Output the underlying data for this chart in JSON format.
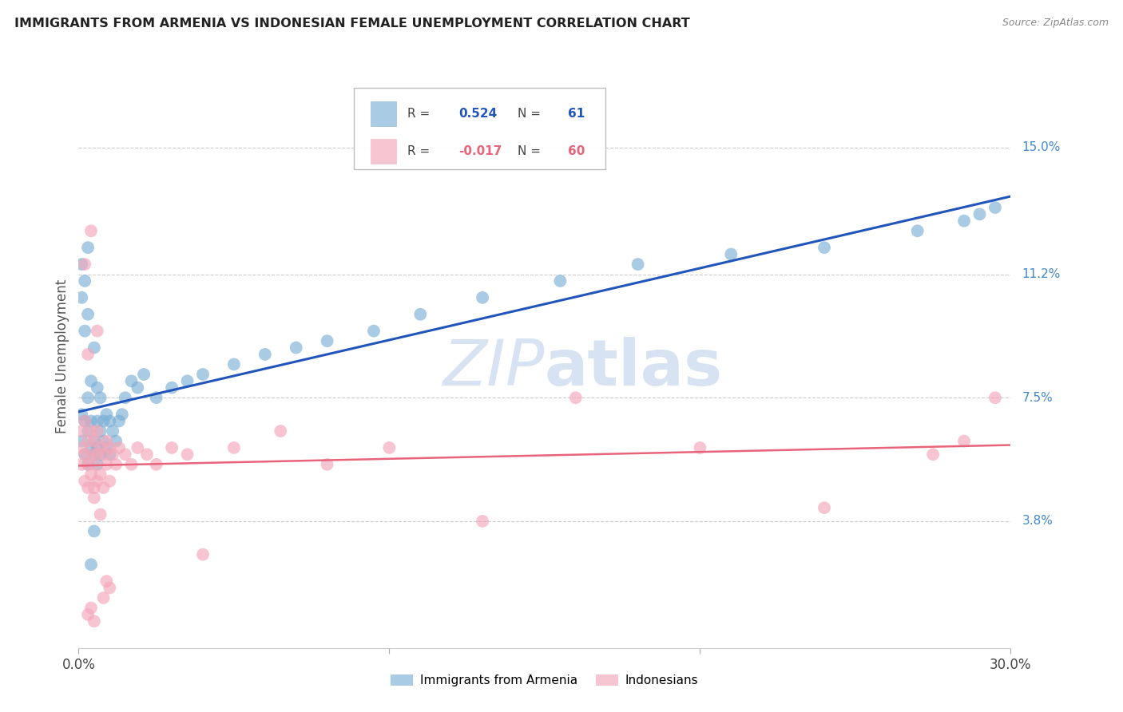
{
  "title": "IMMIGRANTS FROM ARMENIA VS INDONESIAN FEMALE UNEMPLOYMENT CORRELATION CHART",
  "source": "Source: ZipAtlas.com",
  "ylabel": "Female Unemployment",
  "ytick_labels": [
    "15.0%",
    "11.2%",
    "7.5%",
    "3.8%"
  ],
  "ytick_values": [
    0.15,
    0.112,
    0.075,
    0.038
  ],
  "xlim": [
    0.0,
    0.3
  ],
  "ylim": [
    0.0,
    0.175
  ],
  "blue_color": "#7BAFD4",
  "pink_color": "#F4A7B9",
  "line_blue": "#2255BB",
  "line_pink": "#E8647A",
  "watermark_color": "#D0DFF0",
  "background": "#FFFFFF",
  "armenia_x": [
    0.001,
    0.001,
    0.002,
    0.002,
    0.002,
    0.003,
    0.003,
    0.003,
    0.003,
    0.004,
    0.004,
    0.004,
    0.005,
    0.005,
    0.005,
    0.006,
    0.006,
    0.006,
    0.006,
    0.007,
    0.007,
    0.007,
    0.008,
    0.008,
    0.009,
    0.009,
    0.01,
    0.01,
    0.011,
    0.012,
    0.013,
    0.014,
    0.015,
    0.017,
    0.019,
    0.021,
    0.025,
    0.03,
    0.035,
    0.04,
    0.05,
    0.06,
    0.07,
    0.08,
    0.095,
    0.11,
    0.13,
    0.155,
    0.18,
    0.21,
    0.24,
    0.27,
    0.285,
    0.29,
    0.295,
    0.001,
    0.001,
    0.002,
    0.003,
    0.004,
    0.005
  ],
  "armenia_y": [
    0.062,
    0.07,
    0.058,
    0.068,
    0.095,
    0.055,
    0.065,
    0.075,
    0.1,
    0.06,
    0.068,
    0.08,
    0.058,
    0.062,
    0.09,
    0.055,
    0.06,
    0.068,
    0.078,
    0.058,
    0.065,
    0.075,
    0.062,
    0.068,
    0.06,
    0.07,
    0.058,
    0.068,
    0.065,
    0.062,
    0.068,
    0.07,
    0.075,
    0.08,
    0.078,
    0.082,
    0.075,
    0.078,
    0.08,
    0.082,
    0.085,
    0.088,
    0.09,
    0.092,
    0.095,
    0.1,
    0.105,
    0.11,
    0.115,
    0.118,
    0.12,
    0.125,
    0.128,
    0.13,
    0.132,
    0.105,
    0.115,
    0.11,
    0.12,
    0.025,
    0.035
  ],
  "indonesia_x": [
    0.001,
    0.001,
    0.001,
    0.002,
    0.002,
    0.002,
    0.003,
    0.003,
    0.003,
    0.004,
    0.004,
    0.004,
    0.005,
    0.005,
    0.005,
    0.006,
    0.006,
    0.006,
    0.007,
    0.007,
    0.008,
    0.008,
    0.009,
    0.009,
    0.01,
    0.01,
    0.011,
    0.012,
    0.013,
    0.015,
    0.017,
    0.019,
    0.022,
    0.025,
    0.03,
    0.035,
    0.04,
    0.05,
    0.065,
    0.08,
    0.1,
    0.13,
    0.16,
    0.2,
    0.24,
    0.275,
    0.285,
    0.295,
    0.002,
    0.003,
    0.004,
    0.005,
    0.006,
    0.007,
    0.008,
    0.009,
    0.01,
    0.003,
    0.004,
    0.005
  ],
  "indonesia_y": [
    0.055,
    0.06,
    0.065,
    0.05,
    0.058,
    0.068,
    0.048,
    0.055,
    0.062,
    0.052,
    0.058,
    0.065,
    0.048,
    0.055,
    0.062,
    0.05,
    0.058,
    0.065,
    0.052,
    0.06,
    0.048,
    0.058,
    0.055,
    0.062,
    0.05,
    0.06,
    0.058,
    0.055,
    0.06,
    0.058,
    0.055,
    0.06,
    0.058,
    0.055,
    0.06,
    0.058,
    0.028,
    0.06,
    0.065,
    0.055,
    0.06,
    0.038,
    0.075,
    0.06,
    0.042,
    0.058,
    0.062,
    0.075,
    0.115,
    0.088,
    0.125,
    0.045,
    0.095,
    0.04,
    0.015,
    0.02,
    0.018,
    0.01,
    0.012,
    0.008
  ]
}
